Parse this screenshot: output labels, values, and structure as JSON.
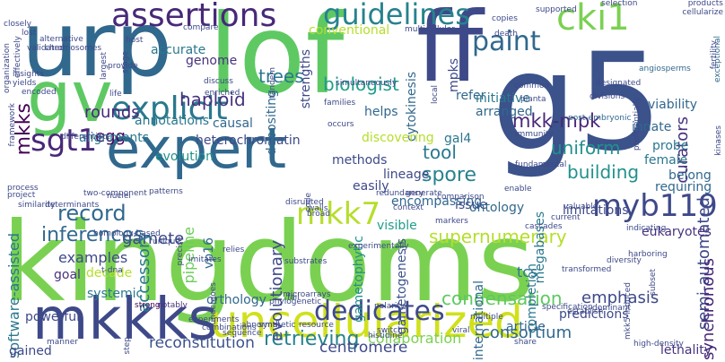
{
  "words": [
    {
      "text": "kingdoms",
      "color": "#7ad151"
    },
    {
      "text": "lof",
      "color": "#5ec962"
    },
    {
      "text": "g5",
      "color": "#3b528b"
    },
    {
      "text": "expert",
      "color": "#31688e"
    },
    {
      "text": "urp",
      "color": "#31688e"
    },
    {
      "text": "gv",
      "color": "#5ec962"
    },
    {
      "text": "ff",
      "color": "#3e4989"
    },
    {
      "text": "mkkks",
      "color": "#3e4989"
    },
    {
      "text": "uncellularized",
      "color": "#d0e11c"
    },
    {
      "text": "assertions",
      "color": "#482878"
    },
    {
      "text": "guidelines",
      "color": "#26828e"
    },
    {
      "text": "cki1",
      "color": "#7ad151"
    },
    {
      "text": "paint",
      "color": "#31688e"
    },
    {
      "text": "sgt1",
      "color": "#482878"
    },
    {
      "text": "explicit",
      "color": "#2a788e"
    },
    {
      "text": "myb119",
      "color": "#3e4989"
    },
    {
      "text": "mkk7",
      "color": "#b5de2b"
    },
    {
      "text": "dedicates",
      "color": "#3e4989"
    },
    {
      "text": "record",
      "color": "#31688e"
    },
    {
      "text": "supernumerary",
      "color": "#b5de2b"
    },
    {
      "text": "retrieving",
      "color": "#26828e"
    },
    {
      "text": "mkk-mpk",
      "color": "#482878"
    },
    {
      "text": "biologist",
      "color": "#1f9e89"
    },
    {
      "text": "haploid",
      "color": "#46327e"
    },
    {
      "text": "trees",
      "color": "#2a788e"
    },
    {
      "text": "gamete",
      "color": "#3e4989"
    },
    {
      "text": "inferences",
      "color": "#31688e"
    },
    {
      "text": "spore",
      "color": "#26828e"
    },
    {
      "text": "tool",
      "color": "#2a788e"
    },
    {
      "text": "uniform",
      "color": "#21918c"
    },
    {
      "text": "building",
      "color": "#21918c"
    },
    {
      "text": "condensation",
      "color": "#5ec962"
    },
    {
      "text": "curators",
      "color": "#46327e"
    },
    {
      "text": "rounds",
      "color": "#482878"
    },
    {
      "text": "egg",
      "color": "#44015d"
    },
    {
      "text": "mkks",
      "color": "#440154"
    },
    {
      "text": "semi-automated",
      "color": "#3e4989"
    },
    {
      "text": "software-assisted",
      "color": "#2a788e"
    },
    {
      "text": "evolutionary",
      "color": "#3e4989"
    },
    {
      "text": "emphasis",
      "color": "#3e4989"
    },
    {
      "text": "consortium",
      "color": "#31688e"
    },
    {
      "text": "reconstitution",
      "color": "#3b528b"
    },
    {
      "text": "centromere",
      "color": "#3e4989"
    },
    {
      "text": "collaboration",
      "color": "#7ad151"
    },
    {
      "text": "synchronous",
      "color": "#482878"
    },
    {
      "text": "heterochromatin",
      "color": "#3e4989"
    },
    {
      "text": "conventional",
      "color": "#b5de2b"
    },
    {
      "text": "strengths",
      "color": "#3e4989"
    },
    {
      "text": "depositing",
      "color": "#31688e"
    },
    {
      "text": "accurate",
      "color": "#2a788e"
    },
    {
      "text": "genome",
      "color": "#46327e"
    },
    {
      "text": "alignments",
      "color": "#2a788e"
    },
    {
      "text": "causal",
      "color": "#31688e"
    },
    {
      "text": "annotations",
      "color": "#2a788e"
    },
    {
      "text": "evolution",
      "color": "#21918c"
    },
    {
      "text": "examples",
      "color": "#3e4989"
    },
    {
      "text": "decade",
      "color": "#b5de2b"
    },
    {
      "text": "goal",
      "color": "#46327e"
    },
    {
      "text": "systemic",
      "color": "#2a788e"
    },
    {
      "text": "pipeline",
      "color": "#6ccd5a"
    },
    {
      "text": "accessory",
      "color": "#2a788e"
    },
    {
      "text": "vp16",
      "color": "#31688e"
    },
    {
      "text": "orthology",
      "color": "#31688e"
    },
    {
      "text": "powerful",
      "color": "#3e4989"
    },
    {
      "text": "gained",
      "color": "#3e4989"
    },
    {
      "text": "lethality",
      "color": "#46327e"
    },
    {
      "text": "megabases",
      "color": "#2a788e"
    },
    {
      "text": "tcs",
      "color": "#2a788e"
    },
    {
      "text": "gametophytic",
      "color": "#21918c"
    },
    {
      "text": "gametogenesis",
      "color": "#3b528b"
    },
    {
      "text": "completion",
      "color": "#2a788e"
    },
    {
      "text": "international",
      "color": "#31688e"
    },
    {
      "text": "predictions",
      "color": "#3e4989"
    },
    {
      "text": "eukaryotes",
      "color": "#46327e"
    },
    {
      "text": "limitations",
      "color": "#3e4989"
    },
    {
      "text": "visible",
      "color": "#1f9e89"
    },
    {
      "text": "encompassing",
      "color": "#31688e"
    },
    {
      "text": "methods",
      "color": "#3e4989"
    },
    {
      "text": "easily",
      "color": "#3e4989"
    },
    {
      "text": "lineage",
      "color": "#3e4989"
    },
    {
      "text": "gal4",
      "color": "#2a788e"
    },
    {
      "text": "issue",
      "color": "#3e4989"
    },
    {
      "text": "ontology",
      "color": "#31688e"
    },
    {
      "text": "refer",
      "color": "#31688e"
    },
    {
      "text": "arranged",
      "color": "#31688e"
    },
    {
      "text": "initiative",
      "color": "#2a788e"
    },
    {
      "text": "mpks",
      "color": "#3e4989"
    },
    {
      "text": "helps",
      "color": "#31688e"
    },
    {
      "text": "cytokinesis",
      "color": "#31688e"
    },
    {
      "text": "discovering",
      "color": "#b5de2b"
    },
    {
      "text": "article",
      "color": "#31688e"
    },
    {
      "text": "viability",
      "color": "#31688e"
    },
    {
      "text": "innate",
      "color": "#31688e"
    },
    {
      "text": "probe",
      "color": "#2a788e"
    },
    {
      "text": "female",
      "color": "#2a788e"
    },
    {
      "text": "belong",
      "color": "#31688e"
    },
    {
      "text": "requiring",
      "color": "#31688e"
    },
    {
      "text": "post-embryonic",
      "color": "#31688e"
    },
    {
      "text": "angiosperms",
      "color": "#31688e"
    },
    {
      "text": "exceptional",
      "color": "#31688e"
    },
    {
      "text": "resource",
      "color": "#3e4989"
    },
    {
      "text": "histidine",
      "color": "#3e4989"
    },
    {
      "text": "sequence",
      "color": "#3e4989"
    },
    {
      "text": "fail",
      "color": "#3e4989"
    },
    {
      "text": "microarrays",
      "color": "#3e4989"
    },
    {
      "text": "polarity",
      "color": "#3e4989"
    },
    {
      "text": "switch",
      "color": "#3e4989"
    },
    {
      "text": "multiple",
      "color": "#3e4989"
    },
    {
      "text": "viral",
      "color": "#3e4989"
    },
    {
      "text": "share",
      "color": "#3e4989"
    },
    {
      "text": "strong",
      "color": "#440154"
    },
    {
      "text": "notably",
      "color": "#46327e"
    },
    {
      "text": "precise",
      "color": "#3e4989"
    },
    {
      "text": "imitates",
      "color": "#3e4989"
    },
    {
      "text": "homology-based",
      "color": "#3e4989"
    },
    {
      "text": "t-dna",
      "color": "#3e4989"
    },
    {
      "text": "unique",
      "color": "#3e4989"
    },
    {
      "text": "relies",
      "color": "#3e4989"
    },
    {
      "text": "substrates",
      "color": "#3e4989"
    },
    {
      "text": "experimentally",
      "color": "#3e4989"
    },
    {
      "text": "broad",
      "color": "#3e4989"
    },
    {
      "text": "context",
      "color": "#3e4989"
    },
    {
      "text": "markers",
      "color": "#3e4989"
    },
    {
      "text": "cascades",
      "color": "#3e4989"
    },
    {
      "text": "valuable",
      "color": "#3e4989"
    },
    {
      "text": "harboring",
      "color": "#3e4989"
    },
    {
      "text": "indicating",
      "color": "#3e4989"
    },
    {
      "text": "subset",
      "color": "#3e4989"
    },
    {
      "text": "current",
      "color": "#3e4989"
    },
    {
      "text": "two-component",
      "color": "#3e4989"
    },
    {
      "text": "determinants",
      "color": "#3e4989"
    },
    {
      "text": "process",
      "color": "#3e4989"
    },
    {
      "text": "project",
      "color": "#3e4989"
    },
    {
      "text": "similarity",
      "color": "#3e4989"
    },
    {
      "text": "nuclei",
      "color": "#3e4989"
    },
    {
      "text": "patterns",
      "color": "#3e4989"
    },
    {
      "text": "disrupted",
      "color": "#3e4989"
    },
    {
      "text": "redundancy",
      "color": "#3e4989"
    },
    {
      "text": "generate",
      "color": "#3e4989"
    },
    {
      "text": "comparison",
      "color": "#3e4989"
    },
    {
      "text": "enable",
      "color": "#3e4989"
    },
    {
      "text": "fundamental",
      "color": "#3e4989"
    },
    {
      "text": "immunity",
      "color": "#3e4989"
    },
    {
      "text": "families",
      "color": "#3e4989"
    },
    {
      "text": "occurs",
      "color": "#3e4989"
    },
    {
      "text": "simultaneously",
      "color": "#3e4989"
    },
    {
      "text": "local",
      "color": "#3e4989"
    },
    {
      "text": "common",
      "color": "#3e4989"
    },
    {
      "text": "planta",
      "color": "#3e4989"
    },
    {
      "text": "divisions",
      "color": "#3e4989"
    },
    {
      "text": "designated",
      "color": "#3e4989"
    },
    {
      "text": "preferentially",
      "color": "#3e4989"
    },
    {
      "text": "mkk5-induced",
      "color": "#3e4989"
    },
    {
      "text": "transformed",
      "color": "#3e4989"
    },
    {
      "text": "diversity",
      "color": "#3e4989"
    },
    {
      "text": "establish",
      "color": "#3e4989"
    },
    {
      "text": "high-density",
      "color": "#3e4989"
    },
    {
      "text": "specification",
      "color": "#3e4989"
    },
    {
      "text": "dominant",
      "color": "#3e4989"
    },
    {
      "text": "synthetic",
      "color": "#3e4989"
    },
    {
      "text": "experiments",
      "color": "#3e4989"
    },
    {
      "text": "combinations",
      "color": "#3e4989"
    },
    {
      "text": "abnormal",
      "color": "#3e4989"
    },
    {
      "text": "phylogenetic",
      "color": "#3e4989"
    },
    {
      "text": "undergoes",
      "color": "#3e4989"
    },
    {
      "text": "step",
      "color": "#3e4989"
    },
    {
      "text": "manner",
      "color": "#3e4989"
    },
    {
      "text": "products",
      "color": "#3e4989"
    },
    {
      "text": "cellularize",
      "color": "#3e4989"
    },
    {
      "text": "fertility",
      "color": "#3e4989"
    },
    {
      "text": "kinases",
      "color": "#3e4989"
    },
    {
      "text": "selection",
      "color": "#3e4989"
    },
    {
      "text": "supported",
      "color": "#3e4989"
    },
    {
      "text": "copies",
      "color": "#3e4989"
    },
    {
      "text": "death",
      "color": "#3e4989"
    },
    {
      "text": "multicellular",
      "color": "#3e4989"
    },
    {
      "text": "compare",
      "color": "#3e4989"
    },
    {
      "text": "host",
      "color": "#3e4989"
    },
    {
      "text": "lost",
      "color": "#3e4989"
    },
    {
      "text": "chromosomes",
      "color": "#3e4989"
    },
    {
      "text": "alternative",
      "color": "#3e4989"
    },
    {
      "text": "validated",
      "color": "#3e4989"
    },
    {
      "text": "closely",
      "color": "#3e4989"
    },
    {
      "text": "effectively",
      "color": "#3e4989"
    },
    {
      "text": "organization",
      "color": "#3e4989"
    },
    {
      "text": "largest",
      "color": "#3e4989"
    },
    {
      "text": "provide",
      "color": "#3e4989"
    },
    {
      "text": "insights",
      "color": "#3e4989"
    },
    {
      "text": "yields",
      "color": "#3e4989"
    },
    {
      "text": "encoded",
      "color": "#3e4989"
    },
    {
      "text": "enriched",
      "color": "#3e4989"
    },
    {
      "text": "discuss",
      "color": "#3e4989"
    },
    {
      "text": "life",
      "color": "#3e4989"
    },
    {
      "text": "framework",
      "color": "#3e4989"
    },
    {
      "text": "stage",
      "color": "#3e4989"
    },
    {
      "text": "differentiate",
      "color": "#3e4989"
    },
    {
      "text": "tandem",
      "color": "#3e4989"
    },
    {
      "text": "code",
      "color": "#3e4989"
    },
    {
      "text": "walls",
      "color": "#3e4989"
    }
  ]
}
